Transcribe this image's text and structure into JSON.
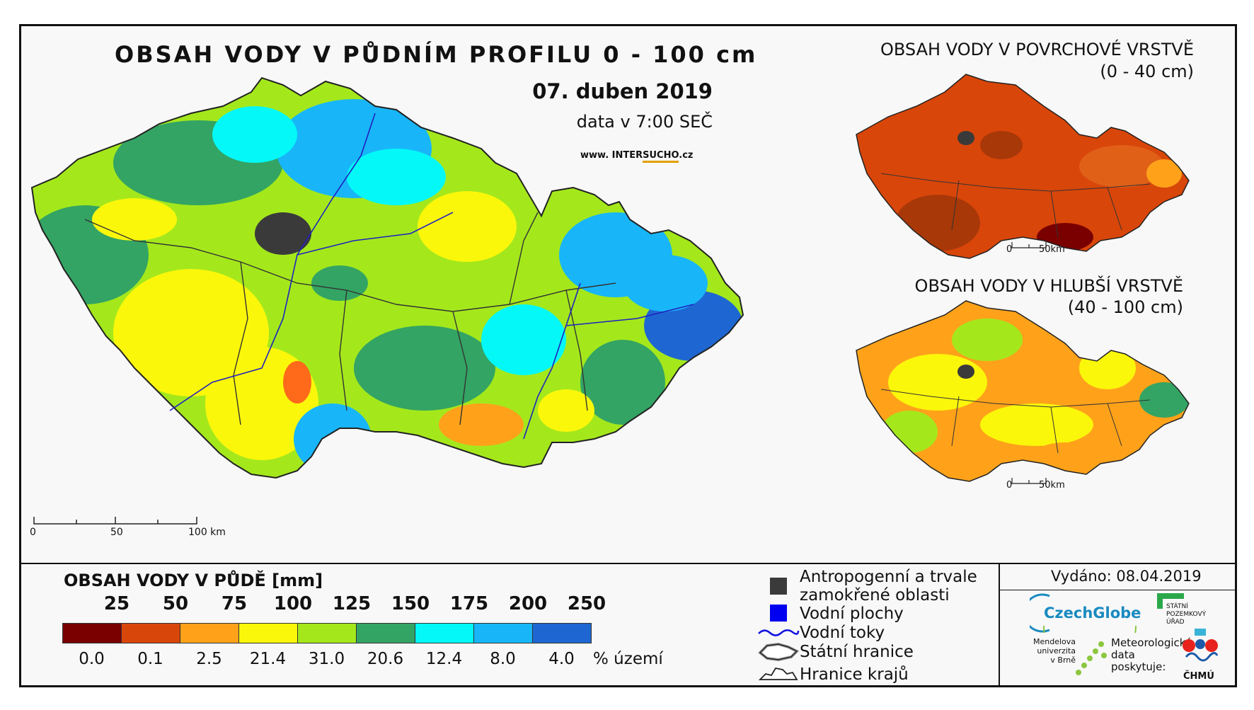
{
  "title": "OBSAH VODY V PŮDNÍM PROFILU 0 - 100 cm",
  "date": "07. duben 2019",
  "time": "data v 7:00 SEČ",
  "website": {
    "prefix": "www. INTER",
    "highlight": "SUCHO",
    "suffix": ".cz"
  },
  "surface_map": {
    "title": "OBSAH VODY V POVRCHOVÉ VRSTVĚ",
    "subtitle": "(0 - 40 cm)",
    "scale": {
      "start": "0",
      "end": "50km"
    }
  },
  "deep_map": {
    "title": "OBSAH VODY V HLUBŠÍ VRSTVĚ",
    "subtitle": "(40 - 100 cm)",
    "scale": {
      "start": "0",
      "end": "50km"
    }
  },
  "main_scale": {
    "labels": [
      "0",
      "50",
      "100 km"
    ]
  },
  "legend": {
    "title": "OBSAH VODY V PŮDĚ [mm]",
    "thresholds": [
      "25",
      "50",
      "75",
      "100",
      "125",
      "150",
      "175",
      "200",
      "250"
    ],
    "colors": [
      "#7a0000",
      "#d9460a",
      "#ffa21a",
      "#fbf70a",
      "#a4e81c",
      "#33a463",
      "#04f8f8",
      "#18b6f8",
      "#1e67d2"
    ],
    "percentages": [
      "0.0",
      "0.1",
      "2.5",
      "21.4",
      "31.0",
      "20.6",
      "12.4",
      "8.0",
      "4.0"
    ],
    "percent_unit": "% území"
  },
  "symbols": {
    "anthropogenic": [
      "Antropogenní a trvale",
      "zamokřené oblasti"
    ],
    "water_bodies": "Vodní plochy",
    "rivers": "Vodní toky",
    "state_border": "Státní hranice",
    "region_border": "Hranice krajů"
  },
  "issued": "Vydáno: 08.04.2019",
  "logos": {
    "czechglobe": "CzechGlobe",
    "spu": [
      "STÁTNÍ",
      "POZEMKOVÝ",
      "ÚŘAD"
    ],
    "mendel": [
      "Mendelova",
      "univerzita",
      "v Brně"
    ],
    "chmu_provider": [
      "Meteorologická",
      "data",
      "poskytuje:"
    ],
    "chmu": "ČHMÚ"
  }
}
